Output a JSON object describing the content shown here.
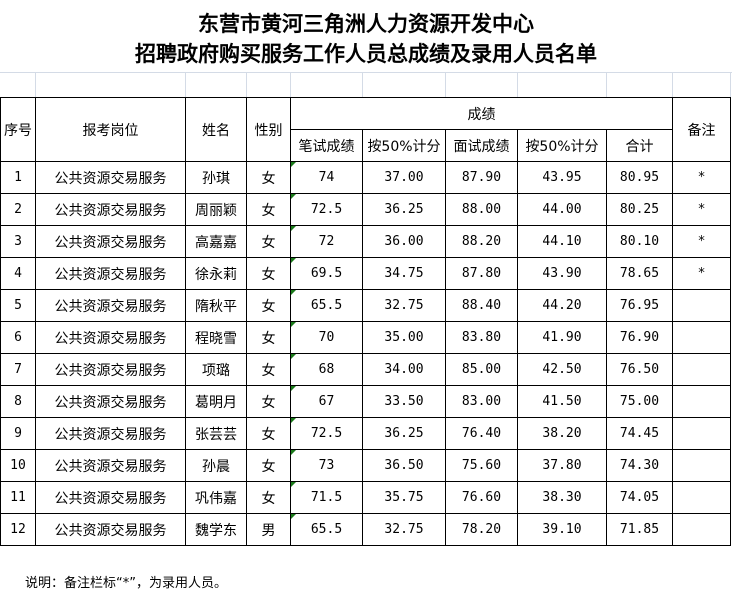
{
  "title_line1": "东营市黄河三角洲人力资源开发中心",
  "title_line2": "招聘政府购买服务工作人员总成绩及录用人员名单",
  "headers": {
    "seq": "序号",
    "position": "报考岗位",
    "name": "姓名",
    "gender": "性别",
    "scores": "成绩",
    "written": "笔试成绩",
    "written50": "按50%计分",
    "interview": "面试成绩",
    "interview50": "按50%计分",
    "total": "合计",
    "remark": "备注"
  },
  "rows": [
    [
      "1",
      "公共资源交易服务",
      "孙琪",
      "女",
      "74",
      "37.00",
      "87.90",
      "43.95",
      "80.95",
      "*"
    ],
    [
      "2",
      "公共资源交易服务",
      "周丽颖",
      "女",
      "72.5",
      "36.25",
      "88.00",
      "44.00",
      "80.25",
      "*"
    ],
    [
      "3",
      "公共资源交易服务",
      "高嘉嘉",
      "女",
      "72",
      "36.00",
      "88.20",
      "44.10",
      "80.10",
      "*"
    ],
    [
      "4",
      "公共资源交易服务",
      "徐永莉",
      "女",
      "69.5",
      "34.75",
      "87.80",
      "43.90",
      "78.65",
      "*"
    ],
    [
      "5",
      "公共资源交易服务",
      "隋秋平",
      "女",
      "65.5",
      "32.75",
      "88.40",
      "44.20",
      "76.95",
      ""
    ],
    [
      "6",
      "公共资源交易服务",
      "程晓雪",
      "女",
      "70",
      "35.00",
      "83.80",
      "41.90",
      "76.90",
      ""
    ],
    [
      "7",
      "公共资源交易服务",
      "项璐",
      "女",
      "68",
      "34.00",
      "85.00",
      "42.50",
      "76.50",
      ""
    ],
    [
      "8",
      "公共资源交易服务",
      "葛明月",
      "女",
      "67",
      "33.50",
      "83.00",
      "41.50",
      "75.00",
      ""
    ],
    [
      "9",
      "公共资源交易服务",
      "张芸芸",
      "女",
      "72.5",
      "36.25",
      "76.40",
      "38.20",
      "74.45",
      ""
    ],
    [
      "10",
      "公共资源交易服务",
      "孙晨",
      "女",
      "73",
      "36.50",
      "75.60",
      "37.80",
      "74.30",
      ""
    ],
    [
      "11",
      "公共资源交易服务",
      "巩伟嘉",
      "女",
      "71.5",
      "35.75",
      "76.60",
      "38.30",
      "74.05",
      ""
    ],
    [
      "12",
      "公共资源交易服务",
      "魏学东",
      "男",
      "65.5",
      "32.75",
      "78.20",
      "39.10",
      "71.85",
      ""
    ]
  ],
  "note": "说明：备注栏标“*”，为录用人员。"
}
